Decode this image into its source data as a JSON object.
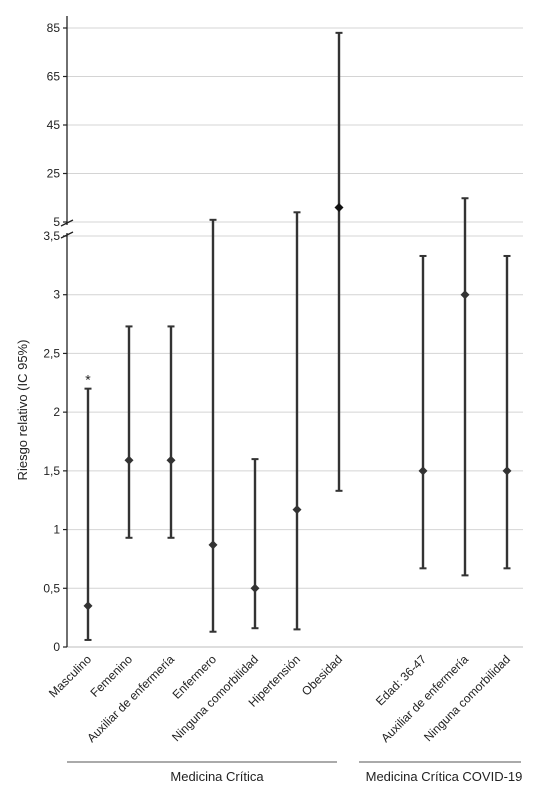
{
  "chart_data": {
    "type": "scatter",
    "title": "",
    "ylabel": "Riesgo relativo (IC 95%)",
    "y_axis_broken": true,
    "lower_axis": {
      "range": [
        0,
        3.5
      ],
      "ticks": [
        "0",
        "0,5",
        "1",
        "1,5",
        "2",
        "2,5",
        "3",
        "3,5"
      ]
    },
    "upper_axis": {
      "range": [
        5,
        85
      ],
      "ticks": [
        "5",
        "25",
        "45",
        "65",
        "85"
      ]
    },
    "groups": [
      {
        "label": "Medicina Crítica"
      },
      {
        "label": "Medicina Crítica COVID-19"
      }
    ],
    "points": [
      {
        "label": "Masculino",
        "group": 0,
        "rr": 0.35,
        "lower": 0.06,
        "upper": 2.2,
        "annotation": "*"
      },
      {
        "label": "Femenino",
        "group": 0,
        "rr": 1.59,
        "lower": 0.93,
        "upper": 2.73,
        "annotation": ""
      },
      {
        "label": "Auxiliar de enfermería",
        "group": 0,
        "rr": 1.59,
        "lower": 0.93,
        "upper": 2.73,
        "annotation": ""
      },
      {
        "label": "Enfermero",
        "group": 0,
        "rr": 0.87,
        "lower": 0.13,
        "upper": 5.9,
        "annotation": ""
      },
      {
        "label": "Ninguna comorbilidad",
        "group": 0,
        "rr": 0.5,
        "lower": 0.16,
        "upper": 1.6,
        "annotation": ""
      },
      {
        "label": "Hipertensión",
        "group": 0,
        "rr": 1.17,
        "lower": 0.15,
        "upper": 9.0,
        "annotation": ""
      },
      {
        "label": "Obesidad",
        "group": 0,
        "rr": 11.0,
        "lower": 1.33,
        "upper": 83.0,
        "annotation": ""
      },
      {
        "label": "Edad: 36-47",
        "group": 1,
        "rr": 1.5,
        "lower": 0.67,
        "upper": 3.33,
        "annotation": ""
      },
      {
        "label": "Auxiliar de enfermería",
        "group": 1,
        "rr": 3.0,
        "lower": 0.61,
        "upper": 14.8,
        "annotation": ""
      },
      {
        "label": "Ninguna comorbilidad",
        "group": 1,
        "rr": 1.5,
        "lower": 0.67,
        "upper": 3.33,
        "annotation": ""
      }
    ],
    "grid": true,
    "legend": "none",
    "colors": {
      "marker": "#333333",
      "grid": "#d4d4d4",
      "axis": "#222222"
    }
  }
}
